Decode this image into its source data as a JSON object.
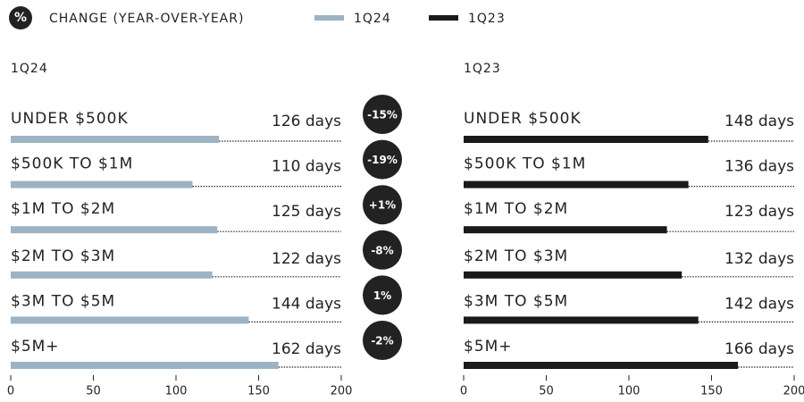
{
  "chart_data": {
    "type": "bar",
    "legend_symbol": "%",
    "legend_title": "CHANGE (YEAR-OVER-YEAR)",
    "categories": [
      "UNDER $500K",
      "$500K TO $1M",
      "$1M TO $2M",
      "$2M TO $3M",
      "$3M TO $5M",
      "$5M+"
    ],
    "series": [
      {
        "name": "1Q24",
        "color": "#9db3c4",
        "values": [
          126,
          110,
          125,
          122,
          144,
          162
        ],
        "value_labels": [
          "126 days",
          "110 days",
          "125 days",
          "122 days",
          "144 days",
          "162 days"
        ]
      },
      {
        "name": "1Q23",
        "color": "#1a1a1a",
        "values": [
          148,
          136,
          123,
          132,
          142,
          166
        ],
        "value_labels": [
          "148 days",
          "136 days",
          "123 days",
          "132 days",
          "142 days",
          "166 days"
        ]
      }
    ],
    "changes": [
      -15,
      -19,
      1,
      -8,
      1,
      -2
    ],
    "change_labels": [
      "-15%",
      "-19%",
      "+1%",
      "-8%",
      "1%",
      "-2%"
    ],
    "xlim": [
      0,
      200
    ],
    "xticks": [
      0,
      50,
      100,
      150,
      200
    ]
  }
}
